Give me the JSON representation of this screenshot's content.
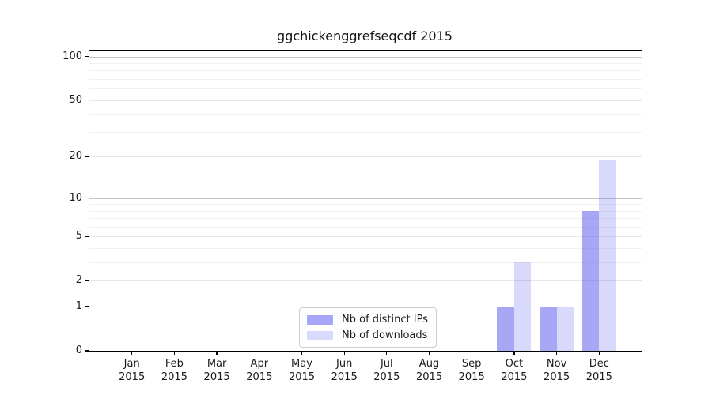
{
  "chart_data": {
    "type": "bar",
    "title": "ggchickenggrefseqcdf 2015",
    "categories": [
      "Jan",
      "Feb",
      "Mar",
      "Apr",
      "May",
      "Jun",
      "Jul",
      "Aug",
      "Sep",
      "Oct",
      "Nov",
      "Dec"
    ],
    "category_year": "2015",
    "series": [
      {
        "name": "Nb of distinct IPs",
        "color": "#a7a7f6",
        "fill": "rgba(80,80,238,0.5)",
        "values": [
          0,
          0,
          0,
          0,
          0,
          0,
          0,
          0,
          0,
          1,
          1,
          8
        ]
      },
      {
        "name": "Nb of downloads",
        "color": "#d8d8fb",
        "fill": "rgba(80,80,238,0.22)",
        "values": [
          0,
          0,
          0,
          0,
          0,
          0,
          0,
          0,
          0,
          3,
          1,
          19
        ]
      }
    ],
    "xlabel": "",
    "ylabel": "",
    "y_ticks": [
      0,
      1,
      2,
      5,
      10,
      20,
      50,
      100
    ],
    "y_scale": "log1p",
    "ylim": [
      0,
      110
    ],
    "grid": true,
    "gridline_values": {
      "major": [
        1,
        10,
        100
      ],
      "mid": [
        2,
        5,
        20,
        50
      ],
      "minor": [
        3,
        4,
        6,
        7,
        8,
        9,
        30,
        40,
        60,
        70,
        80,
        90
      ]
    },
    "legend_position": "lower center inside",
    "colors": {
      "axis": "#000000",
      "grid_major": "#c6c6c6",
      "grid_mid": "#e6e6e6",
      "grid_minor": "#f1f1f1",
      "background": "#ffffff"
    }
  }
}
